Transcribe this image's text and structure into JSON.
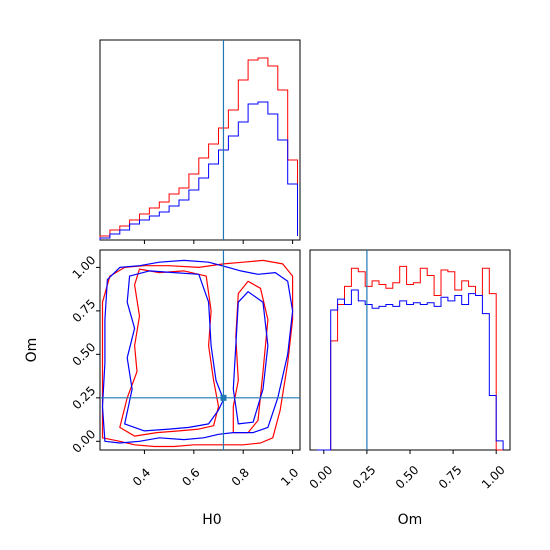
{
  "chart_data": [
    {
      "panel": "H0-marginal",
      "type": "histogram-step",
      "xlim": [
        0.22,
        1.03
      ],
      "truth": 0.72,
      "bins": [
        0.22,
        0.26,
        0.3,
        0.34,
        0.38,
        0.42,
        0.46,
        0.5,
        0.54,
        0.58,
        0.62,
        0.66,
        0.7,
        0.74,
        0.78,
        0.82,
        0.86,
        0.9,
        0.94,
        0.98,
        1.02
      ],
      "series": [
        {
          "color": "#ff0000",
          "values": [
            0.02,
            0.05,
            0.07,
            0.1,
            0.13,
            0.16,
            0.19,
            0.23,
            0.26,
            0.33,
            0.41,
            0.48,
            0.56,
            0.65,
            0.8,
            0.9,
            0.91,
            0.87,
            0.75,
            0.4,
            0.04
          ]
        },
        {
          "color": "#0000ff",
          "values": [
            0.01,
            0.03,
            0.05,
            0.08,
            0.1,
            0.12,
            0.14,
            0.17,
            0.2,
            0.25,
            0.31,
            0.38,
            0.45,
            0.52,
            0.59,
            0.68,
            0.69,
            0.63,
            0.5,
            0.28,
            0.02
          ]
        }
      ]
    },
    {
      "panel": "Om-marginal",
      "type": "histogram-step",
      "xlim": [
        -0.08,
        1.08
      ],
      "truth": 0.25,
      "xticks": [
        "0.00",
        "0.25",
        "0.50",
        "0.75",
        "1.00"
      ],
      "xlabel": "Om",
      "bins": [
        -0.04,
        0.0,
        0.04,
        0.08,
        0.12,
        0.16,
        0.2,
        0.24,
        0.28,
        0.32,
        0.36,
        0.4,
        0.44,
        0.48,
        0.52,
        0.56,
        0.6,
        0.64,
        0.68,
        0.72,
        0.76,
        0.8,
        0.84,
        0.88,
        0.92,
        0.96,
        1.0,
        1.04
      ],
      "series": [
        {
          "color": "#ff0000",
          "values": [
            0.0,
            0.0,
            0.6,
            0.8,
            0.9,
            1.0,
            0.98,
            0.9,
            0.93,
            0.91,
            0.89,
            0.92,
            1.01,
            0.91,
            0.92,
            1.0,
            0.96,
            0.85,
            0.99,
            0.98,
            0.88,
            0.93,
            0.9,
            0.85,
            1.0,
            0.86,
            0.0
          ]
        },
        {
          "color": "#0000ff",
          "values": [
            0.0,
            0.0,
            0.77,
            0.83,
            0.8,
            0.88,
            0.82,
            0.8,
            0.78,
            0.79,
            0.8,
            0.79,
            0.82,
            0.8,
            0.81,
            0.8,
            0.81,
            0.79,
            0.84,
            0.82,
            0.85,
            0.8,
            0.86,
            0.85,
            0.75,
            0.3,
            0.05
          ]
        }
      ]
    },
    {
      "panel": "H0-Om-joint",
      "type": "contour",
      "xlim": [
        0.22,
        1.03
      ],
      "ylim": [
        -0.05,
        1.1
      ],
      "xlabel": "H0",
      "ylabel": "Om",
      "xticks": [
        "0.4",
        "0.6",
        "0.8",
        "1.0"
      ],
      "yticks": [
        "0.00",
        "0.25",
        "0.50",
        "0.75",
        "1.00"
      ],
      "truth": [
        0.72,
        0.25
      ],
      "series": [
        {
          "color": "#ff0000",
          "paths": [
            [
              [
                0.23,
                0.02
              ],
              [
                0.3,
                0.0
              ],
              [
                0.36,
                -0.02
              ],
              [
                0.44,
                -0.03
              ],
              [
                0.52,
                -0.03
              ],
              [
                0.6,
                -0.02
              ],
              [
                0.66,
                -0.02
              ],
              [
                0.72,
                -0.02
              ],
              [
                0.8,
                -0.02
              ],
              [
                0.87,
                -0.01
              ],
              [
                0.92,
                0.02
              ],
              [
                0.95,
                0.18
              ],
              [
                0.98,
                0.45
              ],
              [
                1.0,
                0.7
              ],
              [
                1.0,
                0.95
              ],
              [
                0.96,
                1.02
              ],
              [
                0.88,
                1.04
              ],
              [
                0.8,
                1.03
              ],
              [
                0.72,
                1.02
              ],
              [
                0.62,
                1.0
              ],
              [
                0.5,
                1.01
              ],
              [
                0.4,
                1.01
              ],
              [
                0.32,
                1.0
              ],
              [
                0.26,
                0.95
              ],
              [
                0.23,
                0.8
              ],
              [
                0.23,
                0.5
              ],
              [
                0.23,
                0.2
              ],
              [
                0.23,
                0.02
              ]
            ],
            [
              [
                0.3,
                0.08
              ],
              [
                0.36,
                0.03
              ],
              [
                0.45,
                0.05
              ],
              [
                0.54,
                0.06
              ],
              [
                0.62,
                0.07
              ],
              [
                0.68,
                0.09
              ],
              [
                0.7,
                0.2
              ],
              [
                0.68,
                0.35
              ],
              [
                0.66,
                0.55
              ],
              [
                0.67,
                0.75
              ],
              [
                0.65,
                0.95
              ],
              [
                0.56,
                0.98
              ],
              [
                0.46,
                0.97
              ],
              [
                0.38,
                0.99
              ],
              [
                0.36,
                0.9
              ],
              [
                0.38,
                0.72
              ],
              [
                0.36,
                0.55
              ],
              [
                0.37,
                0.4
              ],
              [
                0.33,
                0.25
              ],
              [
                0.3,
                0.08
              ]
            ],
            [
              [
                0.76,
                0.05
              ],
              [
                0.82,
                0.05
              ],
              [
                0.86,
                0.12
              ],
              [
                0.88,
                0.4
              ],
              [
                0.9,
                0.7
              ],
              [
                0.87,
                0.88
              ],
              [
                0.82,
                0.92
              ],
              [
                0.78,
                0.85
              ],
              [
                0.77,
                0.6
              ],
              [
                0.78,
                0.35
              ],
              [
                0.76,
                0.2
              ],
              [
                0.76,
                0.05
              ]
            ]
          ]
        },
        {
          "color": "#0000ff",
          "paths": [
            [
              [
                0.24,
                0.0
              ],
              [
                0.3,
                -0.01
              ],
              [
                0.38,
                0.0
              ],
              [
                0.46,
                0.02
              ],
              [
                0.56,
                0.01
              ],
              [
                0.64,
                0.02
              ],
              [
                0.7,
                0.04
              ],
              [
                0.76,
                0.05
              ],
              [
                0.84,
                0.05
              ],
              [
                0.9,
                0.08
              ],
              [
                0.94,
                0.25
              ],
              [
                0.98,
                0.5
              ],
              [
                1.0,
                0.75
              ],
              [
                0.98,
                0.92
              ],
              [
                0.93,
                0.97
              ],
              [
                0.86,
                0.96
              ],
              [
                0.79,
                0.98
              ],
              [
                0.74,
                1.0
              ],
              [
                0.66,
                1.03
              ],
              [
                0.56,
                1.04
              ],
              [
                0.46,
                1.03
              ],
              [
                0.38,
                1.01
              ],
              [
                0.3,
                1.0
              ],
              [
                0.25,
                0.93
              ],
              [
                0.24,
                0.7
              ],
              [
                0.24,
                0.45
              ],
              [
                0.23,
                0.2
              ],
              [
                0.24,
                0.0
              ]
            ],
            [
              [
                0.32,
                0.1
              ],
              [
                0.4,
                0.06
              ],
              [
                0.5,
                0.07
              ],
              [
                0.58,
                0.08
              ],
              [
                0.66,
                0.1
              ],
              [
                0.7,
                0.18
              ],
              [
                0.72,
                0.24
              ],
              [
                0.69,
                0.35
              ],
              [
                0.67,
                0.55
              ],
              [
                0.66,
                0.8
              ],
              [
                0.62,
                0.96
              ],
              [
                0.52,
                0.97
              ],
              [
                0.42,
                0.98
              ],
              [
                0.34,
                0.95
              ],
              [
                0.33,
                0.8
              ],
              [
                0.36,
                0.65
              ],
              [
                0.33,
                0.48
              ],
              [
                0.35,
                0.3
              ],
              [
                0.32,
                0.1
              ]
            ],
            [
              [
                0.78,
                0.1
              ],
              [
                0.84,
                0.11
              ],
              [
                0.88,
                0.3
              ],
              [
                0.9,
                0.55
              ],
              [
                0.88,
                0.8
              ],
              [
                0.82,
                0.86
              ],
              [
                0.78,
                0.8
              ],
              [
                0.77,
                0.55
              ],
              [
                0.76,
                0.3
              ],
              [
                0.78,
                0.1
              ]
            ]
          ]
        }
      ]
    }
  ]
}
